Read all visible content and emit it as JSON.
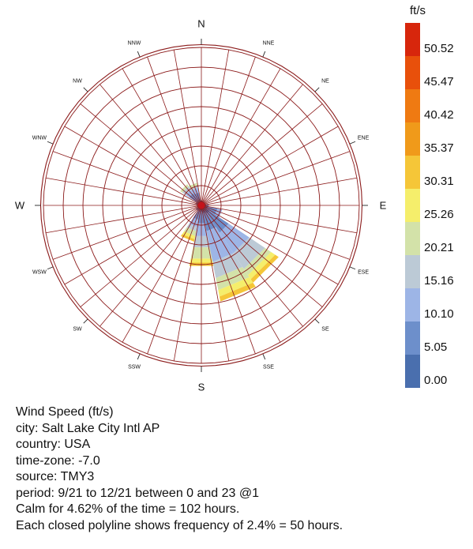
{
  "chart_data": {
    "type": "wind-rose",
    "unit": "ft/s",
    "directions": [
      "N",
      "NNE",
      "NE",
      "ENE",
      "E",
      "ESE",
      "SE",
      "SSE",
      "S",
      "SSW",
      "SW",
      "WSW",
      "W",
      "WNW",
      "NW",
      "NNW"
    ],
    "bin_edges": [
      0.0,
      5.05,
      10.1,
      15.16,
      20.21,
      25.26,
      30.31,
      35.37,
      40.42,
      45.47,
      50.52
    ],
    "legend_ticks": [
      "0.00",
      "5.05",
      "10.10",
      "15.16",
      "20.21",
      "25.26",
      "30.31",
      "35.37",
      "40.42",
      "45.47",
      "50.52"
    ],
    "colors": [
      "#4a6fae",
      "#6d8fcb",
      "#9db5e6",
      "#bccad6",
      "#d3e2a9",
      "#f5ee6b",
      "#f5c638",
      "#f09a1a",
      "#ef7a12",
      "#e8500b",
      "#d7260c"
    ],
    "polyline_frequency_percent": 2.4,
    "ring_count": 8,
    "frequency_percent": {
      "N": [
        0.6,
        0,
        0,
        0,
        0,
        0,
        0
      ],
      "NNE": [
        0.5,
        0,
        0,
        0,
        0,
        0,
        0
      ],
      "NE": [
        0.5,
        0,
        0,
        0,
        0,
        0,
        0
      ],
      "ENE": [
        0.5,
        0,
        0,
        0,
        0,
        0,
        0
      ],
      "E": [
        0.6,
        0.3,
        0,
        0,
        0,
        0,
        0
      ],
      "ESE": [
        0.8,
        1.2,
        0.6,
        0,
        0,
        0,
        0
      ],
      "SE": [
        1.2,
        2.8,
        3.0,
        2.3,
        0.9,
        0.6,
        0.5
      ],
      "SSE": [
        1.0,
        2.2,
        3.8,
        2.0,
        1.5,
        0.8,
        0.6
      ],
      "S": [
        0.8,
        1.4,
        1.6,
        1.4,
        1.4,
        0.5,
        0.4
      ],
      "SSW": [
        0.6,
        1.2,
        0.9,
        0.5,
        0.6,
        0.4,
        0.3
      ],
      "SW": [
        0.5,
        0.3,
        0,
        0,
        0,
        0,
        0
      ],
      "WSW": [
        0.5,
        0,
        0,
        0,
        0,
        0,
        0
      ],
      "W": [
        0.5,
        0,
        0,
        0,
        0,
        0,
        0
      ],
      "WNW": [
        0.5,
        0.2,
        0,
        0,
        0,
        0,
        0
      ],
      "NW": [
        0.5,
        1.3,
        0.5,
        0.5,
        0.3,
        0,
        0
      ],
      "NNW": [
        0.5,
        1.1,
        0.6,
        0.3,
        0.3,
        0,
        0
      ]
    }
  },
  "info_lines": [
    "Wind Speed (ft/s)",
    "city: Salt Lake City Intl AP",
    "country: USA",
    "time-zone: -7.0",
    "source: TMY3",
    "period: 9/21 to 12/21 between 0 and 23 @1",
    "Calm for 4.62% of the time = 102 hours.",
    "Each closed polyline shows frequency of 2.4% = 50 hours."
  ]
}
